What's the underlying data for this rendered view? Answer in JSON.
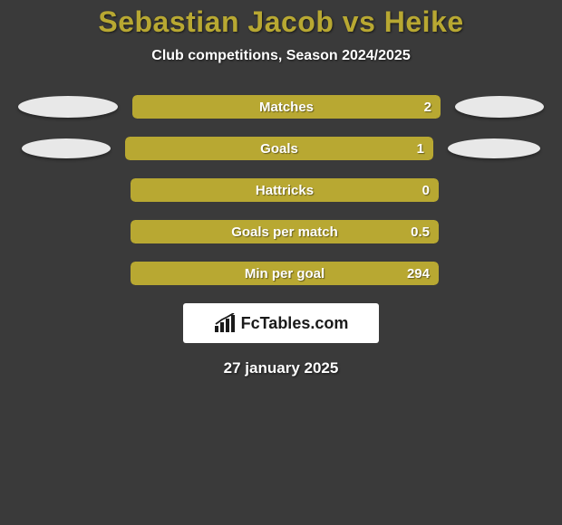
{
  "title": {
    "text": "Sebastian Jacob vs Heike",
    "color": "#b8a832",
    "fontsize": 32
  },
  "subtitle": {
    "text": "Club competitions, Season 2024/2025",
    "fontsize": 16
  },
  "bar": {
    "outer_bg": "#2a2a2a",
    "fill_color": "#b8a832",
    "label_fontsize": 15,
    "value_fontsize": 15
  },
  "blob": {
    "color": "#e8e8e8"
  },
  "stats": [
    {
      "label": "Matches",
      "value": "2",
      "fill_pct": 100,
      "left_blob": {
        "w": 110,
        "h": 24
      },
      "right_blob": {
        "w": 98,
        "h": 24
      }
    },
    {
      "label": "Goals",
      "value": "1",
      "fill_pct": 100,
      "left_blob": {
        "w": 98,
        "h": 22
      },
      "right_blob": {
        "w": 102,
        "h": 22
      }
    },
    {
      "label": "Hattricks",
      "value": "0",
      "fill_pct": 100,
      "left_blob": null,
      "right_blob": null
    },
    {
      "label": "Goals per match",
      "value": "0.5",
      "fill_pct": 100,
      "left_blob": null,
      "right_blob": null
    },
    {
      "label": "Min per goal",
      "value": "294",
      "fill_pct": 100,
      "left_blob": null,
      "right_blob": null
    }
  ],
  "branding": {
    "text": "FcTables.com",
    "icon_color": "#1a1a1a"
  },
  "date": {
    "text": "27 january 2025",
    "fontsize": 17
  }
}
